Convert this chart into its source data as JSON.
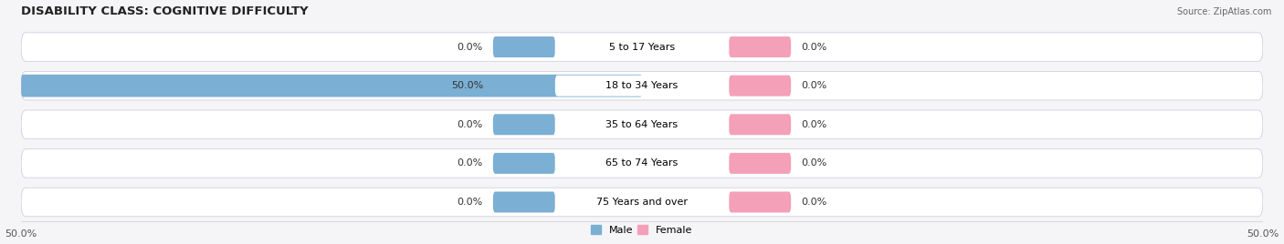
{
  "title": "DISABILITY CLASS: COGNITIVE DIFFICULTY",
  "source": "Source: ZipAtlas.com",
  "categories": [
    "5 to 17 Years",
    "18 to 34 Years",
    "35 to 64 Years",
    "65 to 74 Years",
    "75 Years and over"
  ],
  "male_values": [
    0.0,
    50.0,
    0.0,
    0.0,
    0.0
  ],
  "female_values": [
    0.0,
    0.0,
    0.0,
    0.0,
    0.0
  ],
  "male_color": "#7bafd4",
  "female_color": "#f4a0b8",
  "bar_bg_color": "#ededf3",
  "x_min": -50.0,
  "x_max": 50.0,
  "x_tick_labels": [
    "50.0%",
    "50.0%"
  ],
  "title_fontsize": 9.5,
  "label_fontsize": 8,
  "tick_fontsize": 8,
  "bar_height": 0.62,
  "background_color": "#f5f5f8"
}
